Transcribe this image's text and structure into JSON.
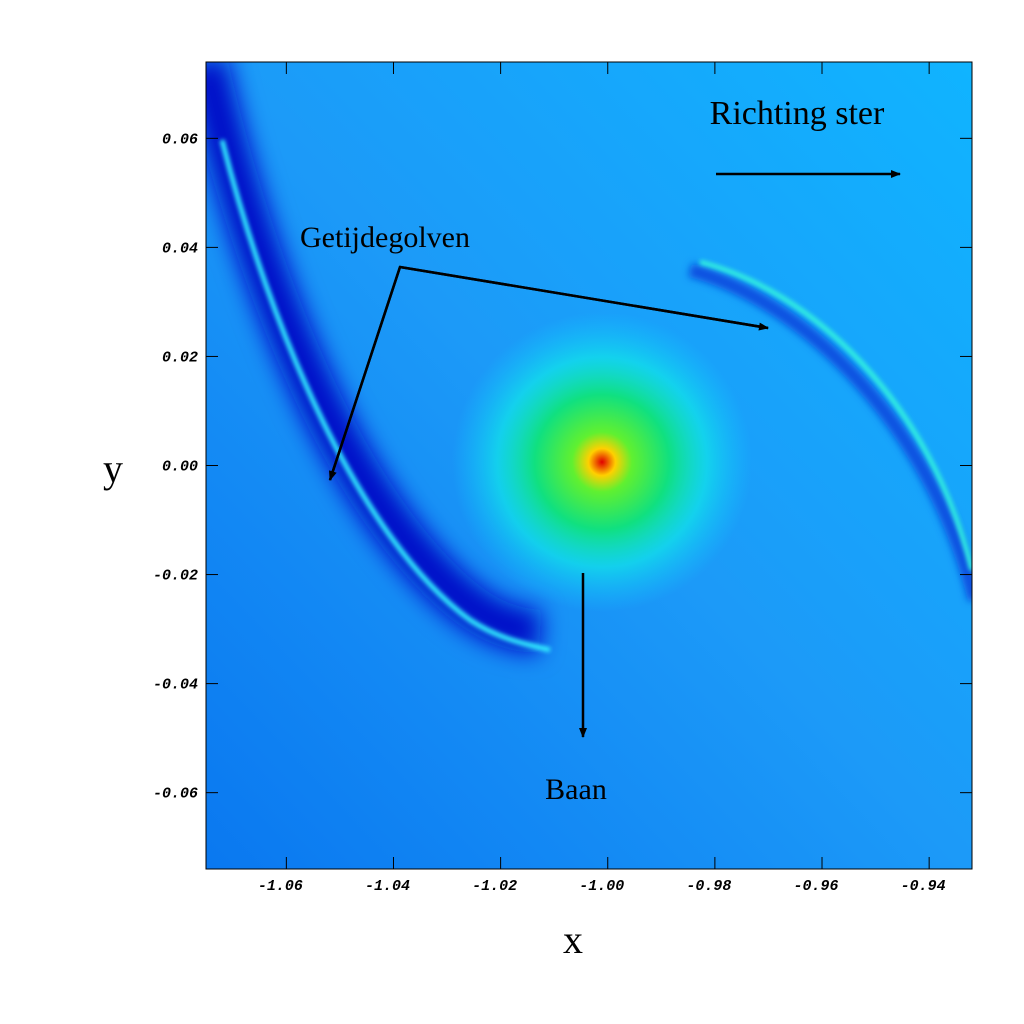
{
  "chart_data": {
    "type": "heatmap",
    "xlabel": "x",
    "ylabel": "y",
    "xlim": [
      -1.075,
      -0.932
    ],
    "ylim": [
      -0.074,
      0.074
    ],
    "xticks": [
      -1.06,
      -1.04,
      -1.02,
      {
        "value": -1,
        "label": "-1.00"
      },
      -0.98,
      -0.96,
      -0.94
    ],
    "yticks": [
      0.06,
      0.04,
      0.02,
      {
        "value": 0,
        "label": "0.00"
      },
      -0.02,
      -0.04,
      -0.06
    ],
    "annotations": [
      "Richting ster",
      "Getijdegolven",
      "Baan"
    ]
  }
}
